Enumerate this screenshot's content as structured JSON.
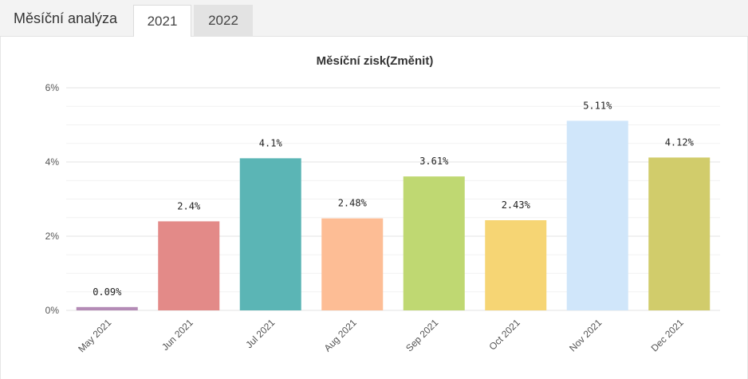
{
  "header": {
    "section_title": "Měsíční analýza",
    "tabs": [
      {
        "label": "2021",
        "active": true
      },
      {
        "label": "2022",
        "active": false
      }
    ]
  },
  "chart_data": {
    "type": "bar",
    "title": "Měsíční zisk(Změnit)",
    "xlabel": "",
    "ylabel": "",
    "categories": [
      "May 2021",
      "Jun 2021",
      "Jul 2021",
      "Aug 2021",
      "Sep 2021",
      "Oct 2021",
      "Nov 2021",
      "Dec 2021"
    ],
    "values": [
      0.09,
      2.4,
      4.1,
      2.48,
      3.61,
      2.43,
      5.11,
      4.12
    ],
    "value_labels": [
      "0.09%",
      "2.4%",
      "4.1%",
      "2.48%",
      "3.61%",
      "2.43%",
      "5.11%",
      "4.12%"
    ],
    "colors": [
      "#b48bb6",
      "#e38a88",
      "#5bb5b5",
      "#fdbd95",
      "#bfd872",
      "#f6d574",
      "#d0e6fa",
      "#d1cc6b"
    ],
    "yticks": [
      "0%",
      "2%",
      "4%",
      "6%"
    ],
    "ytick_values": [
      0,
      2,
      4,
      6
    ],
    "ylim": [
      0,
      6
    ],
    "grid": true,
    "legend": "none"
  }
}
